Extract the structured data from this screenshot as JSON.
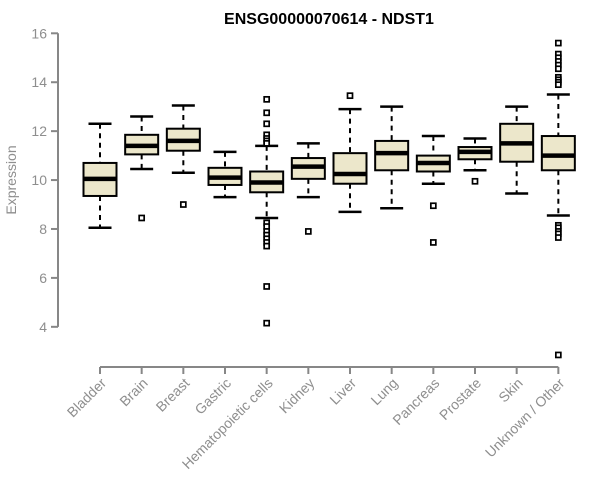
{
  "chart_data": {
    "type": "boxplot",
    "title": "ENSG00000070614 - NDST1",
    "ylabel": "Expression",
    "xlabel": "",
    "ylim": [
      4,
      16
    ],
    "yticks": [
      4,
      6,
      8,
      10,
      12,
      14,
      16
    ],
    "grid": false,
    "legend": "none",
    "box_fill_color": "#ece7cb",
    "box_border_color": "#000000",
    "axis_color": "#878787",
    "axis_text_color": "#8e8e8e",
    "categories": [
      "Bladder",
      "Brain",
      "Breast",
      "Gastric",
      "Hematopoietic cells",
      "Kidney",
      "Liver",
      "Lung",
      "Pancreas",
      "Prostate",
      "Skin",
      "Unknown / Other"
    ],
    "series": [
      {
        "name": "Bladder",
        "whisker_low": 8.05,
        "q1": 9.35,
        "median": 10.05,
        "q3": 10.7,
        "whisker_high": 12.3,
        "outliers": []
      },
      {
        "name": "Brain",
        "whisker_low": 10.45,
        "q1": 11.05,
        "median": 11.4,
        "q3": 11.85,
        "whisker_high": 12.6,
        "outliers": [
          8.45
        ]
      },
      {
        "name": "Breast",
        "whisker_low": 10.3,
        "q1": 11.2,
        "median": 11.6,
        "q3": 12.1,
        "whisker_high": 13.05,
        "outliers": [
          9.0
        ]
      },
      {
        "name": "Gastric",
        "whisker_low": 9.3,
        "q1": 9.8,
        "median": 10.1,
        "q3": 10.5,
        "whisker_high": 11.15,
        "outliers": []
      },
      {
        "name": "Hematopoietic cells",
        "whisker_low": 8.45,
        "q1": 9.5,
        "median": 9.9,
        "q3": 10.35,
        "whisker_high": 11.4,
        "outliers": [
          13.3,
          12.75,
          12.3,
          11.85,
          11.7,
          11.6,
          11.5,
          8.25,
          8.1,
          7.9,
          7.75,
          7.6,
          7.45,
          7.3,
          5.65,
          4.15
        ]
      },
      {
        "name": "Kidney",
        "whisker_low": 9.3,
        "q1": 10.05,
        "median": 10.55,
        "q3": 10.9,
        "whisker_high": 11.5,
        "outliers": [
          7.9
        ]
      },
      {
        "name": "Liver",
        "whisker_low": 8.7,
        "q1": 9.85,
        "median": 10.25,
        "q3": 11.1,
        "whisker_high": 12.9,
        "outliers": [
          13.45
        ]
      },
      {
        "name": "Lung",
        "whisker_low": 8.85,
        "q1": 10.4,
        "median": 11.1,
        "q3": 11.6,
        "whisker_high": 13.0,
        "outliers": []
      },
      {
        "name": "Pancreas",
        "whisker_low": 9.85,
        "q1": 10.35,
        "median": 10.7,
        "q3": 11.0,
        "whisker_high": 11.8,
        "outliers": [
          8.95,
          7.45
        ]
      },
      {
        "name": "Prostate",
        "whisker_low": 10.4,
        "q1": 10.85,
        "median": 11.15,
        "q3": 11.35,
        "whisker_high": 11.7,
        "outliers": [
          9.95
        ]
      },
      {
        "name": "Skin",
        "whisker_low": 9.45,
        "q1": 10.75,
        "median": 11.5,
        "q3": 12.3,
        "whisker_high": 13.0,
        "outliers": []
      },
      {
        "name": "Unknown / Other",
        "whisker_low": 8.55,
        "q1": 10.4,
        "median": 11.0,
        "q3": 11.8,
        "whisker_high": 13.5,
        "outliers": [
          15.6,
          15.15,
          15.0,
          14.85,
          14.7,
          14.55,
          14.2,
          14.1,
          14.0,
          13.9,
          8.15,
          8.05,
          7.9,
          7.8,
          7.65,
          2.85
        ]
      }
    ]
  }
}
